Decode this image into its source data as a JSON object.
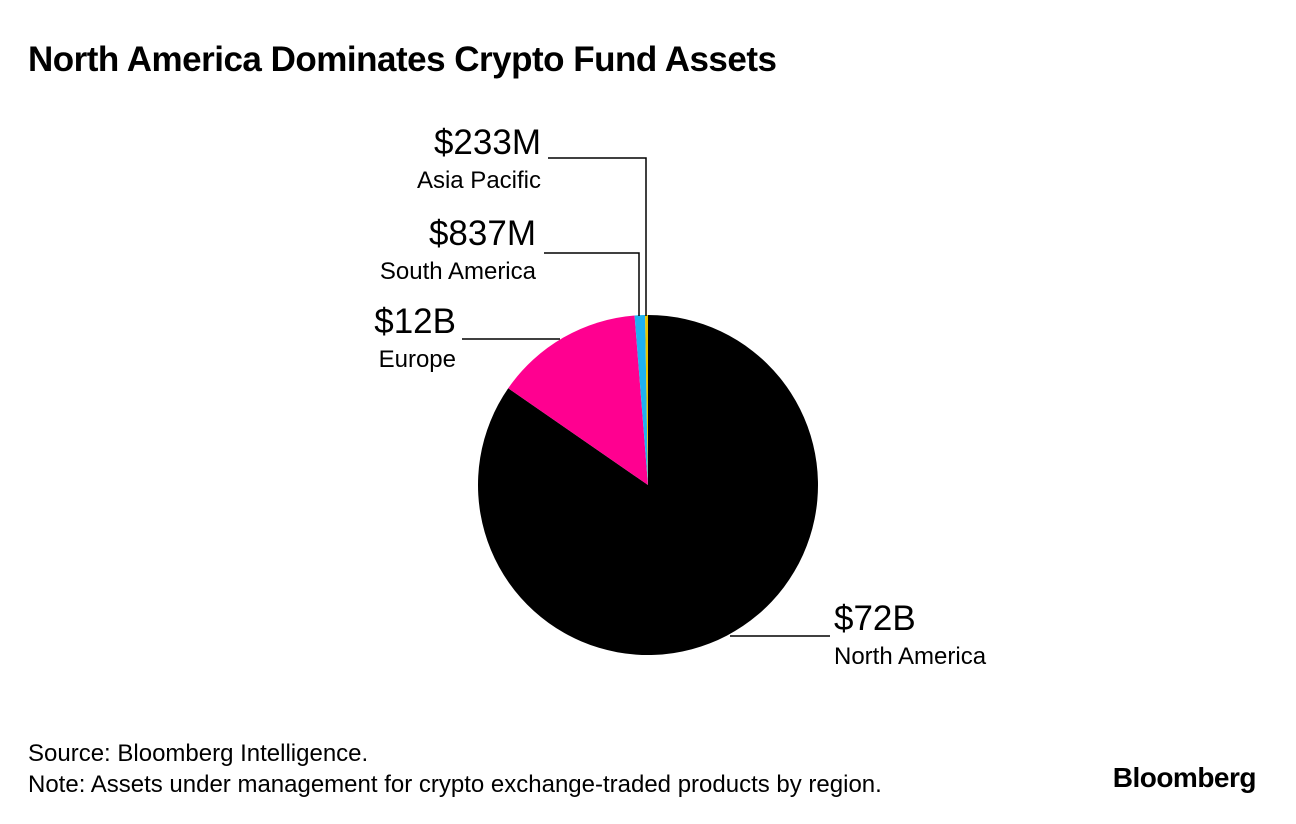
{
  "chart_data": {
    "type": "pie",
    "title": "North America Dominates Crypto Fund Assets",
    "unit": "USD",
    "slices": [
      {
        "name": "North America",
        "value": 72000,
        "value_label": "$72B",
        "color": "#000000"
      },
      {
        "name": "Europe",
        "value": 12000,
        "value_label": "$12B",
        "color": "#ff0090"
      },
      {
        "name": "South America",
        "value": 837,
        "value_label": "$837M",
        "color": "#1fb1f0"
      },
      {
        "name": "Asia Pacific",
        "value": 233,
        "value_label": "$233M",
        "color": "#e8c400"
      }
    ],
    "value_units_note": "values in millions USD",
    "start": "12 o'clock",
    "direction": "clockwise"
  },
  "footer": {
    "source": "Source: Bloomberg Intelligence.",
    "note": "Note: Assets under management for crypto exchange-traded products by region."
  },
  "brand": "Bloomberg"
}
